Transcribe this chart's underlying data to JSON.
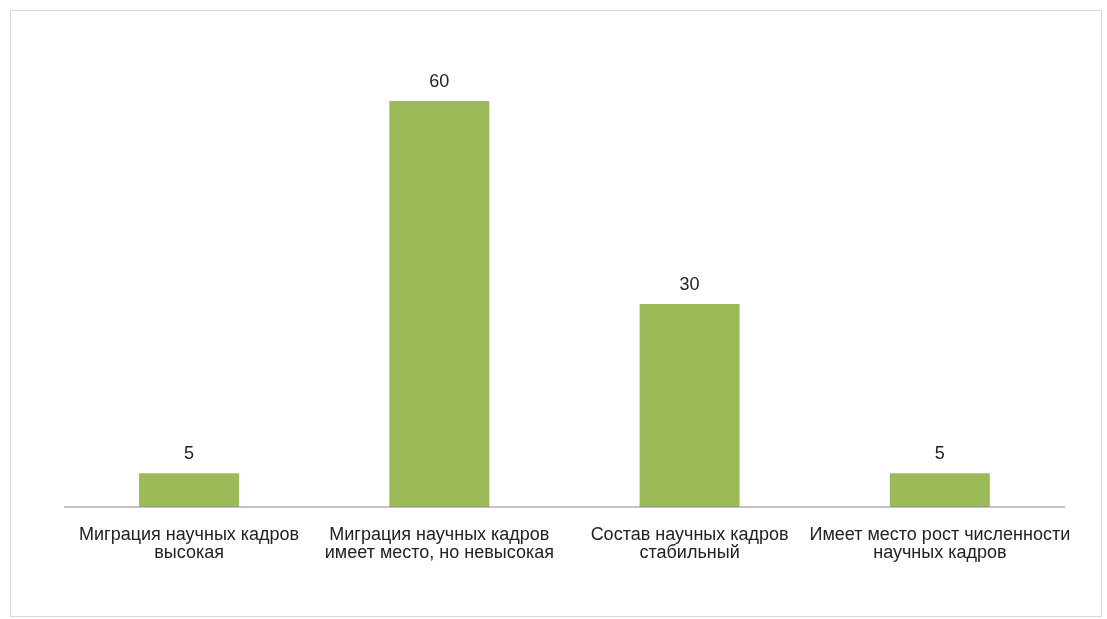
{
  "chart_data": {
    "type": "bar",
    "categories": [
      "Миграция научных кадров высокая",
      "Миграция научных кадров имеет место, но невысокая",
      "Состав научных кадров стабильный",
      "Имеет место рост численности научных кадров"
    ],
    "values": [
      5,
      60,
      30,
      5
    ],
    "color": "#9bbb59",
    "data_labels": true,
    "grid": false,
    "legend": false
  }
}
